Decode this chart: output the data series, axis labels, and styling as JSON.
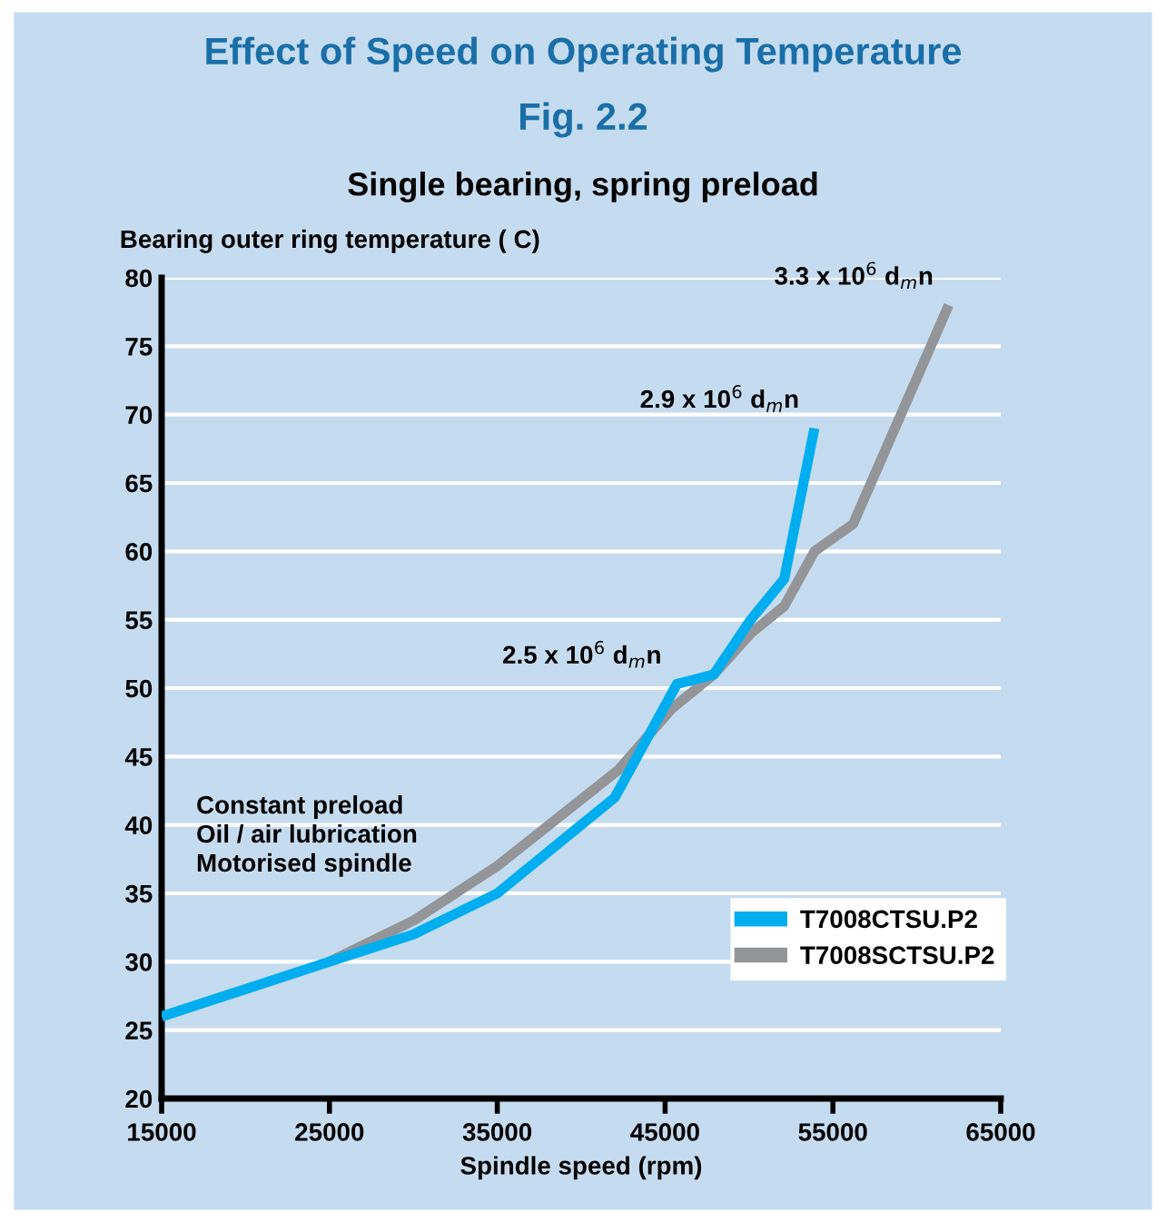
{
  "chart_data": {
    "type": "line",
    "title": "Effect of Speed on Operating Temperature",
    "subtitle": "Fig. 2.2",
    "xlabel": "Spindle speed (rpm)",
    "ylabel": "Bearing outer ring temperature ( C)",
    "xlim": [
      15000,
      65000
    ],
    "xticks": [
      15000,
      25000,
      35000,
      45000,
      55000,
      65000
    ],
    "ylim": [
      20,
      80
    ],
    "yticks": [
      20,
      25,
      30,
      35,
      40,
      45,
      50,
      55,
      60,
      65,
      70,
      75,
      80
    ],
    "grid": "y",
    "legend": "bottom right",
    "line_style": "solid",
    "marker": "none",
    "series": [
      {
        "name": "T7008CTSU.P2",
        "color": "#00aeef",
        "x": [
          15000,
          25000,
          30000,
          35000,
          40000,
          42000,
          45700,
          47900,
          50100,
          52100,
          53900
        ],
        "values": [
          26,
          30,
          32,
          35,
          40,
          42,
          50.3,
          51,
          55,
          58,
          69
        ]
      },
      {
        "name": "T7008SCTSU.P2",
        "color": "#939598",
        "x": [
          25000,
          30000,
          35000,
          42200,
          45400,
          47900,
          50100,
          52100,
          53900,
          56200,
          61900
        ],
        "values": [
          30,
          33,
          37,
          44,
          48.5,
          51,
          54,
          56,
          60,
          62,
          78
        ]
      }
    ],
    "annotations": [
      "Single bearing, spring preload",
      "Constant preload\nOil / air lubrication\nMotorised spindle",
      {
        "text": "2.5 x 10$^{6}$ d$_{m}$n",
        "x": 45700,
        "y": 50.3
      },
      {
        "text": "2.9 x 10$^{6}$ d$_{m}$n",
        "x": 53900,
        "y": 69
      },
      {
        "text": "3.3 x 10$^{6}$ d$_{m}$n",
        "x": 61900,
        "y": 78
      }
    ]
  }
}
